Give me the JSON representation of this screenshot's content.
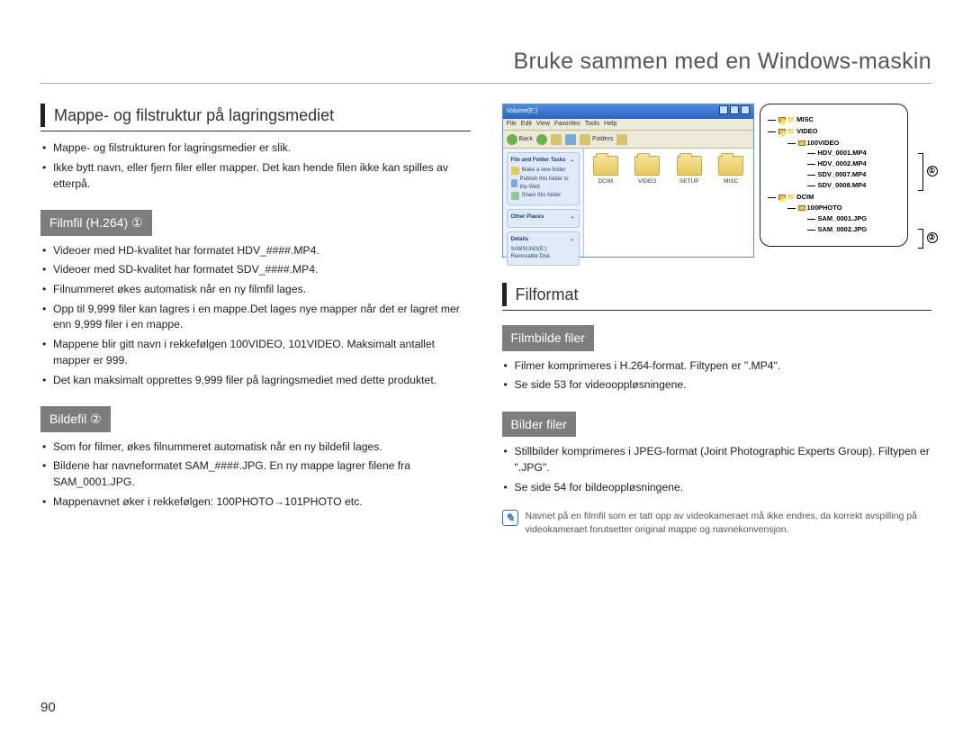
{
  "page_title": "Bruke sammen med en Windows-maskin",
  "page_number": "90",
  "left": {
    "heading": "Mappe- og filstruktur på lagringsmediet",
    "intro_bullets": [
      "Mappe- og filstrukturen for lagringsmedier er slik.",
      "Ikke bytt navn, eller fjern filer eller mapper. Det kan hende filen ikke kan spilles av etterpå."
    ],
    "box1": "Filmfil (H.264) ①",
    "box1_bullets": [
      "Videoer med HD-kvalitet har formatet HDV_####.MP4.",
      "Videoer med SD-kvalitet har formatet SDV_####.MP4.",
      "Filnummeret økes automatisk når en ny filmfil lages.",
      "Opp til 9,999 filer kan lagres i en mappe.Det lages nye mapper når det er lagret mer enn 9,999 filer i en mappe.",
      "Mappene blir gitt navn i rekkefølgen 100VIDEO, 101VIDEO. Maksimalt antallet mapper er 999.",
      "Det kan maksimalt opprettes 9,999 filer på lagringsmediet med dette produktet."
    ],
    "box2": "Bildefil ②",
    "box2_bullets": [
      "Som for filmer, økes filnummeret automatisk når en ny bildefil lages.",
      "Bildene har navneformatet SAM_####.JPG. En ny mappe lagrer filene fra SAM_0001.JPG.",
      "Mappenavnet øker i rekkefølgen: 100PHOTO→101PHOTO etc."
    ]
  },
  "right": {
    "heading": "Filformat",
    "box1": "Filmbilde filer",
    "box1_bullets": [
      "Filmer komprimeres i H.264-format. Filtypen er \".MP4\".",
      "Se side 53 for videooppløsningene."
    ],
    "box2": "Bilder filer",
    "box2_bullets": [
      "Stillbilder komprimeres i JPEG-format (Joint Photographic Experts Group). Filtypen er \".JPG\".",
      "Se side 54 for bildeoppløsningene."
    ],
    "note": "Navnet på en filmfil som er tatt opp av videokameraet må ikke endres, da korrekt avspilling på videokameraet forutsetter original mappe og navnekonvensjon."
  },
  "screenshot": {
    "titlebar": "Volume(E:)",
    "menu": [
      "File",
      "Edit",
      "View",
      "Favorites",
      "Tools",
      "Help"
    ],
    "back": "Back",
    "folders_label": "Folders",
    "side1_title": "File and Folder Tasks",
    "side1_items": [
      "Make a new folder",
      "Publish this folder to the Web",
      "Share this folder"
    ],
    "side2_title": "Other Places",
    "side3_title": "Details",
    "side3_items": [
      "SAMSUNG(E:)",
      "Removable Disk"
    ],
    "folders": [
      "DCIM",
      "VIDEO",
      "SETUP",
      "MISC"
    ]
  },
  "tree": {
    "misc": "MISC",
    "video": "VIDEO",
    "video_sub": "100VIDEO",
    "video_files": [
      "HDV_0001.MP4",
      "HDV_0002.MP4",
      "SDV_0007.MP4",
      "SDV_0008.MP4"
    ],
    "dcim": "DCIM",
    "dcim_sub": "100PHOTO",
    "dcim_files": [
      "SAM_0001.JPG",
      "SAM_0002.JPG"
    ],
    "label1": "①",
    "label2": "②"
  },
  "colors": {
    "graybox": "#7d7d7d",
    "titlebar_top": "#4f8de0",
    "titlebar_bottom": "#2a63c0",
    "win_chrome": "#ece9d8",
    "folder_top": "#f5e29a",
    "folder_bottom": "#e7c959"
  }
}
